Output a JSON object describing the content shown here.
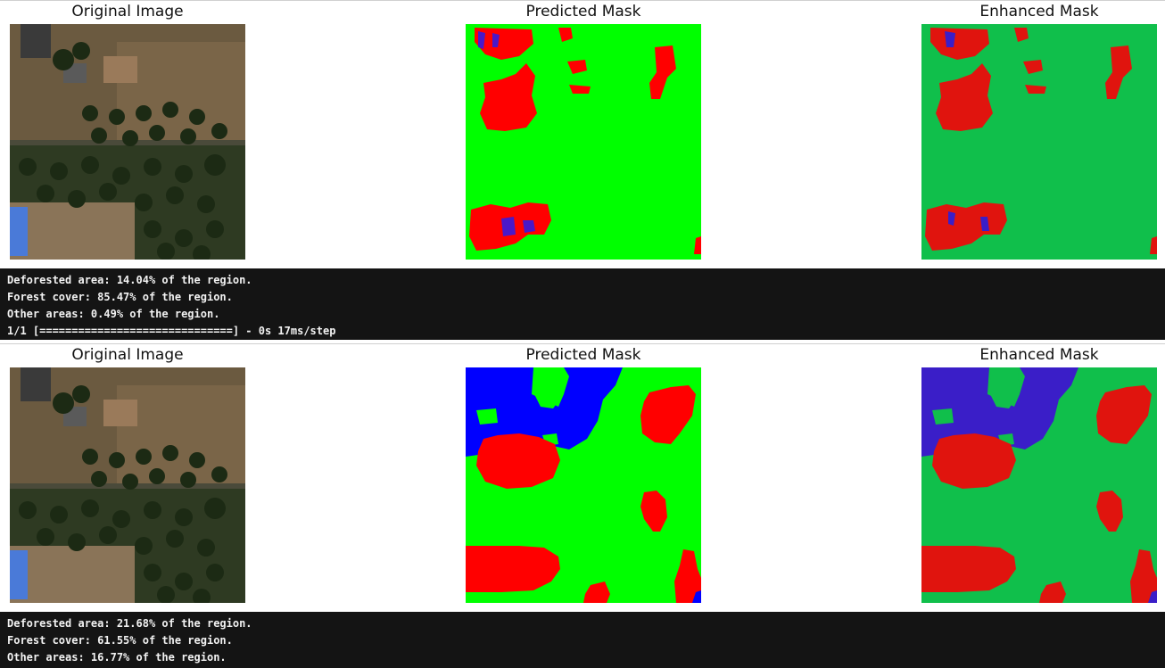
{
  "figures": [
    {
      "titles": [
        "Original Image",
        "Predicted Mask",
        "Enhanced Mask"
      ],
      "output_lines": [
        "Deforested area: 14.04% of the region.",
        "Forest cover: 85.47% of the region.",
        "Other areas: 0.49% of the region.",
        "1/1 [==============================] - 0s 17ms/step"
      ]
    },
    {
      "titles": [
        "Original Image",
        "Predicted Mask",
        "Enhanced Mask"
      ],
      "output_lines": [
        "Deforested area: 21.68% of the region.",
        "Forest cover: 61.55% of the region.",
        "Other areas: 16.77% of the region."
      ]
    }
  ],
  "colors": {
    "predicted_forest": "#00ff00",
    "predicted_deforested": "#ff0000",
    "predicted_other": "#0000ff",
    "enhanced_forest": "#10bf4b",
    "enhanced_deforested": "#e0140e",
    "enhanced_other": "#3a1ec8",
    "output_background": "#141414"
  },
  "icons": {
    "satellite_image": "satellite-image",
    "mask_image": "segmentation-mask"
  }
}
